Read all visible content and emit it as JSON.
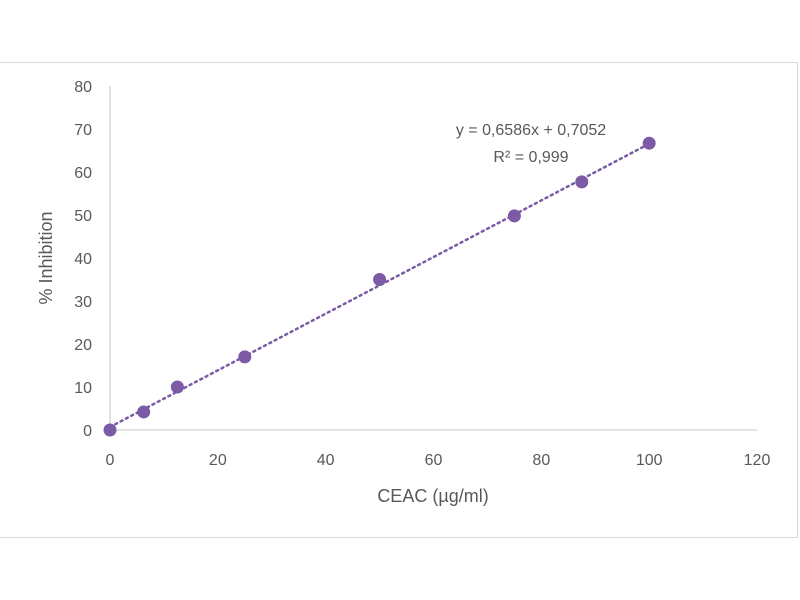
{
  "chart_data": {
    "type": "scatter",
    "title": "",
    "xlabel": "CEAC (µg/ml)",
    "ylabel": "% Inhibition",
    "xlim": [
      0,
      120
    ],
    "ylim": [
      0,
      80
    ],
    "x_ticks": [
      0,
      20,
      40,
      60,
      80,
      100,
      120
    ],
    "y_ticks": [
      0,
      10,
      20,
      30,
      40,
      50,
      60,
      70,
      80
    ],
    "x_tick_labels": [
      "0",
      "20",
      "40",
      "60",
      "80",
      "100",
      "120"
    ],
    "y_tick_labels": [
      "0",
      "10",
      "20",
      "30",
      "40",
      "50",
      "60",
      "70",
      "80"
    ],
    "grid": false,
    "legend": "none",
    "series": [
      {
        "x": [
          0,
          6.25,
          12.5,
          25,
          50,
          75,
          87.5,
          100
        ],
        "y": [
          0,
          4.2,
          10,
          17,
          35,
          49.8,
          57.7,
          66.7
        ],
        "color": "#7b5aa6"
      }
    ],
    "trendline": {
      "type": "linear",
      "slope": 0.6586,
      "intercept": 0.7052,
      "x_range": [
        0,
        100
      ],
      "color": "#7b5aa6",
      "style": "dotted"
    },
    "annotations": {
      "equation": "y = 0,6586x + 0,7052",
      "r_squared": "R² = 0,999"
    },
    "axis_color": "#d9d9d9"
  }
}
